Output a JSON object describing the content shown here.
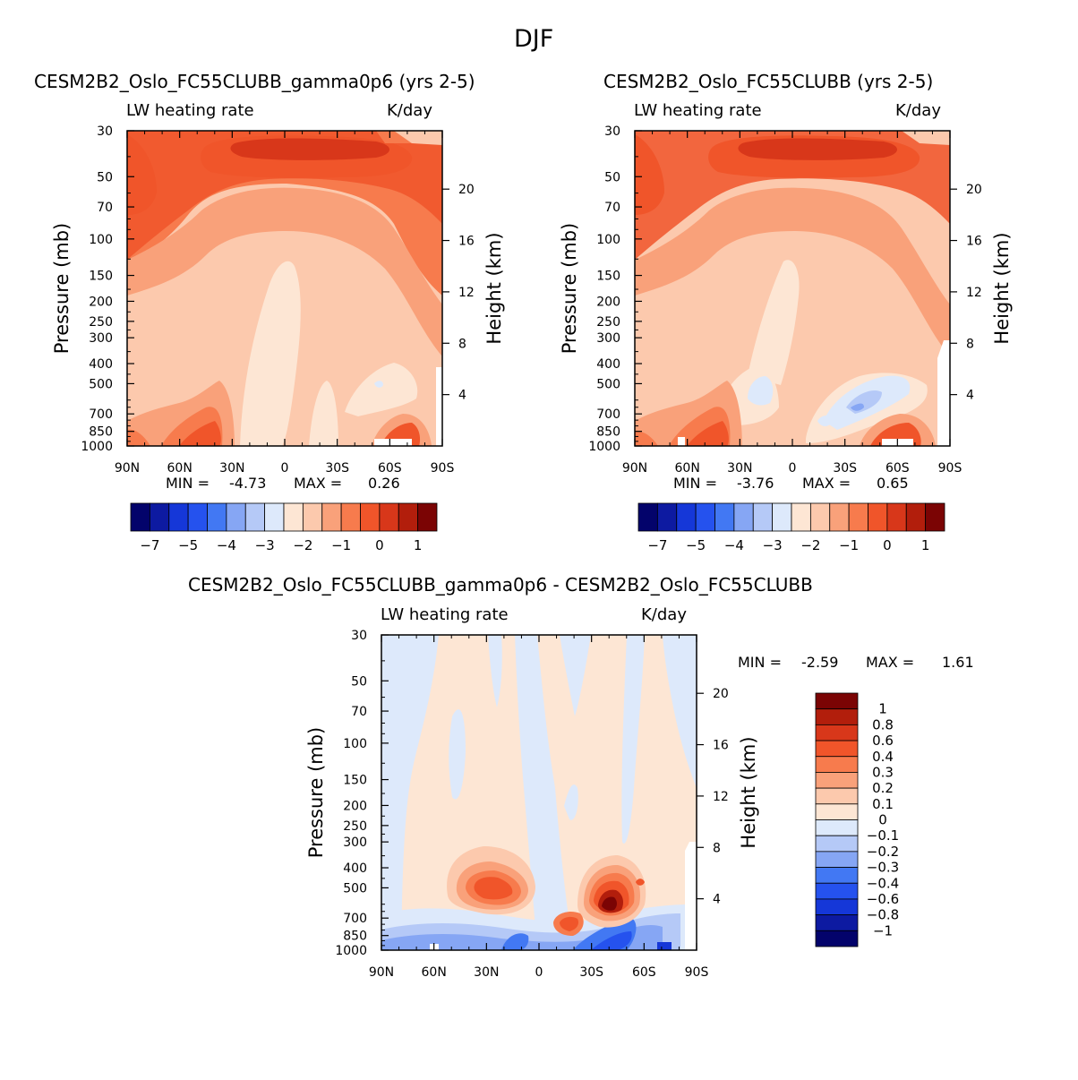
{
  "figure_title": "DJF",
  "panels": [
    {
      "title": "CESM2B2_Oslo_FC55CLUBB_gamma0p6 (yrs 2-5)",
      "left_label": "LW heating rate",
      "right_label": "K/day",
      "min_label": "MIN =",
      "min_value": "-4.73",
      "max_label": "MAX =",
      "max_value": "0.26"
    },
    {
      "title": "CESM2B2_Oslo_FC55CLUBB (yrs 2-5)",
      "left_label": "LW heating rate",
      "right_label": "K/day",
      "min_label": "MIN =",
      "min_value": "-3.76",
      "max_label": "MAX =",
      "max_value": "0.65"
    },
    {
      "title": "CESM2B2_Oslo_FC55CLUBB_gamma0p6 - CESM2B2_Oslo_FC55CLUBB",
      "left_label": "LW heating rate",
      "right_label": "K/day",
      "min_label": "MIN =",
      "min_value": "-2.59",
      "max_label": "MAX =",
      "max_value": "1.61"
    }
  ],
  "chart_data": [
    {
      "type": "heatmap",
      "title": "CESM2B2_Oslo_FC55CLUBB_gamma0p6 (yrs 2-5)",
      "xlabel": "",
      "ylabel": "Pressure (mb)",
      "y2label": "Height (km)",
      "x_ticks": [
        "90N",
        "60N",
        "30N",
        "0",
        "30S",
        "60S",
        "90S"
      ],
      "y_ticks": [
        "30",
        "50",
        "70",
        "100",
        "150",
        "200",
        "250",
        "300",
        "400",
        "500",
        "700",
        "850",
        "1000"
      ],
      "y2_ticks": [
        "20",
        "16",
        "12",
        "8",
        "4"
      ],
      "colorbar_ticks": [
        "-7",
        "-5",
        "-4",
        "-3",
        "-2",
        "-1",
        "0",
        "1"
      ],
      "colorbar_colors": [
        "#03036b",
        "#0d1aa1",
        "#1537d8",
        "#2552ee",
        "#4278f3",
        "#86a6f4",
        "#b5c9f7",
        "#dde9fb",
        "#fde6d4",
        "#fcc9ad",
        "#f9a17a",
        "#f77b4d",
        "#f0552a",
        "#d8371a",
        "#b21e0c",
        "#7b0404"
      ],
      "min": -4.73,
      "max": 0.26
    },
    {
      "type": "heatmap",
      "title": "CESM2B2_Oslo_FC55CLUBB (yrs 2-5)",
      "xlabel": "",
      "ylabel": "Pressure (mb)",
      "y2label": "Height (km)",
      "x_ticks": [
        "90N",
        "60N",
        "30N",
        "0",
        "30S",
        "60S",
        "90S"
      ],
      "y_ticks": [
        "30",
        "50",
        "70",
        "100",
        "150",
        "200",
        "250",
        "300",
        "400",
        "500",
        "700",
        "850",
        "1000"
      ],
      "y2_ticks": [
        "20",
        "16",
        "12",
        "8",
        "4"
      ],
      "colorbar_ticks": [
        "-7",
        "-5",
        "-4",
        "-3",
        "-2",
        "-1",
        "0",
        "1"
      ],
      "colorbar_colors": [
        "#03036b",
        "#0d1aa1",
        "#1537d8",
        "#2552ee",
        "#4278f3",
        "#86a6f4",
        "#b5c9f7",
        "#dde9fb",
        "#fde6d4",
        "#fcc9ad",
        "#f9a17a",
        "#f77b4d",
        "#f0552a",
        "#d8371a",
        "#b21e0c",
        "#7b0404"
      ],
      "min": -3.76,
      "max": 0.65
    },
    {
      "type": "heatmap",
      "title": "CESM2B2_Oslo_FC55CLUBB_gamma0p6 - CESM2B2_Oslo_FC55CLUBB",
      "xlabel": "",
      "ylabel": "Pressure (mb)",
      "y2label": "Height (km)",
      "x_ticks": [
        "90N",
        "60N",
        "30N",
        "0",
        "30S",
        "60S",
        "90S"
      ],
      "y_ticks": [
        "30",
        "50",
        "70",
        "100",
        "150",
        "200",
        "250",
        "300",
        "400",
        "500",
        "700",
        "850",
        "1000"
      ],
      "y2_ticks": [
        "20",
        "16",
        "12",
        "8",
        "4"
      ],
      "colorbar_ticks": [
        "1",
        "0.8",
        "0.6",
        "0.4",
        "0.3",
        "0.2",
        "0.1",
        "0",
        "-0.1",
        "-0.2",
        "-0.3",
        "-0.4",
        "-0.6",
        "-0.8",
        "-1"
      ],
      "colorbar_colors": [
        "#7b0404",
        "#b21e0c",
        "#d8371a",
        "#f0552a",
        "#f77b4d",
        "#f9a17a",
        "#fcc9ad",
        "#fde6d4",
        "#dde9fb",
        "#b5c9f7",
        "#86a6f4",
        "#4278f3",
        "#2552ee",
        "#1537d8",
        "#0d1aa1",
        "#03036b"
      ],
      "min": -2.59,
      "max": 1.61
    }
  ]
}
